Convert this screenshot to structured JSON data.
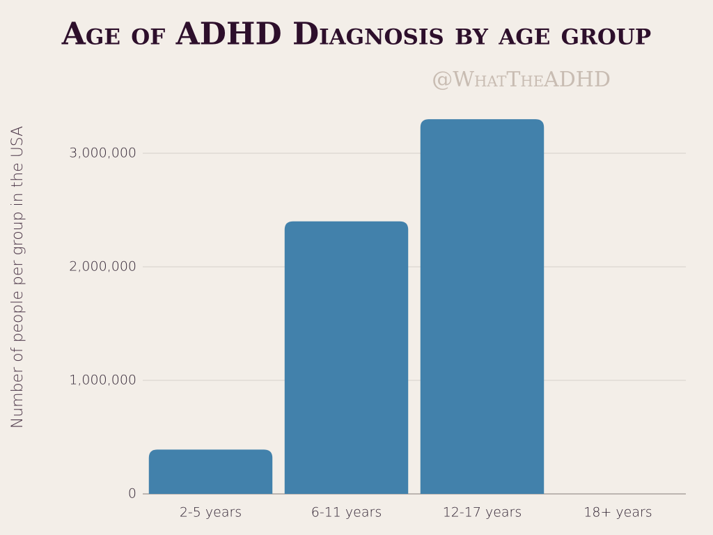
{
  "chart_data": {
    "type": "bar",
    "title": "Age of ADHD Diagnosis by age group",
    "subtitle": "@WhatTheADHD",
    "y_label": "Number of people per group in the USA",
    "categories": [
      "2-5 years",
      "6-11 years",
      "12-17 years",
      "18+ years"
    ],
    "values": [
      390000,
      2400000,
      3300000,
      null
    ],
    "color": "#4281ab",
    "ylim": [
      0,
      3400000
    ],
    "yticks": [
      0,
      {
        "value": 1000000,
        "label": "1,000,000"
      },
      {
        "value": 2000000,
        "label": "2,000,000"
      },
      {
        "value": 3000000,
        "label": "3,000,000"
      }
    ],
    "grid": true
  }
}
